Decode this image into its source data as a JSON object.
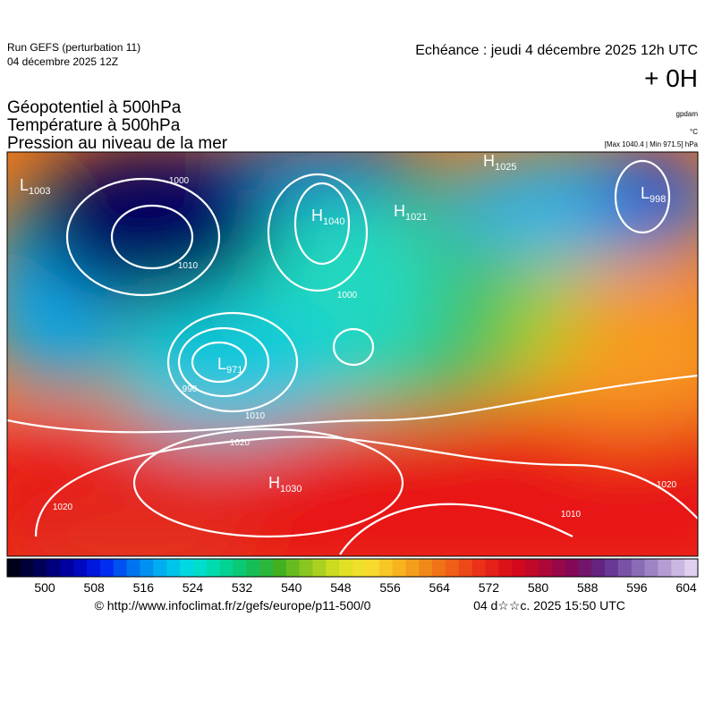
{
  "header": {
    "run": "Run GEFS (perturbation 11)",
    "run_date": "04 décembre 2025 12Z",
    "valid": "Echéance : jeudi 4 décembre 2025 12h UTC",
    "lead": "+ 0H"
  },
  "fields": [
    "Géopotentiel à 500hPa",
    "Température à 500hPa",
    "Pression au niveau de la mer"
  ],
  "units": [
    "gpdam",
    "°C",
    "[Max 1040.4 | Min 971.5] hPa"
  ],
  "map": {
    "centers": [
      {
        "letter": "L",
        "value": "1003"
      },
      {
        "letter": "H",
        "value": "1040"
      },
      {
        "letter": "H",
        "value": "1021"
      },
      {
        "letter": "L",
        "value": "971"
      },
      {
        "letter": "L",
        "value": "998"
      },
      {
        "letter": "H",
        "value": "1030"
      },
      {
        "letter": "H",
        "value": "1025"
      }
    ],
    "isobar_labels": [
      "1000",
      "1010",
      "1020",
      "1010",
      "1000",
      "1020",
      "1020",
      "1010",
      "990"
    ]
  },
  "colorbar": {
    "ticks": [
      500,
      508,
      516,
      524,
      532,
      540,
      548,
      556,
      564,
      572,
      580,
      588,
      596,
      604
    ]
  },
  "footer": {
    "url": "© http://www.infoclimat.fr/z/gefs/europe/p11-500/0",
    "timestamp": "04 d☆☆c. 2025 15:50 UTC"
  }
}
